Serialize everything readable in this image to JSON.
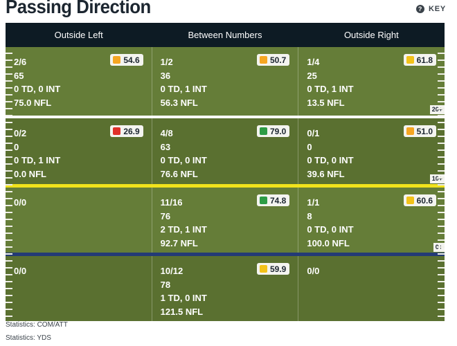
{
  "title": "Passing Direction",
  "key_label": "KEY",
  "columns": [
    "Outside Left",
    "Between Numbers",
    "Outside Right"
  ],
  "rows": [
    {
      "marker": "20+",
      "cells": [
        {
          "lines": [
            "2/6",
            "65",
            "0 TD, 0 INT",
            "75.0 NFL"
          ],
          "grade": "54.6",
          "grade_color": "#f5a623"
        },
        {
          "lines": [
            "1/2",
            "36",
            "0 TD, 1 INT",
            "56.3 NFL"
          ],
          "grade": "50.7",
          "grade_color": "#f5a623"
        },
        {
          "lines": [
            "1/4",
            "25",
            "0 TD, 1 INT",
            "13.5 NFL"
          ],
          "grade": "61.8",
          "grade_color": "#f2c21a"
        }
      ]
    },
    {
      "marker": "10+",
      "cells": [
        {
          "lines": [
            "0/2",
            "0",
            "0 TD, 1 INT",
            "0.0 NFL"
          ],
          "grade": "26.9",
          "grade_color": "#e0302a"
        },
        {
          "lines": [
            "4/8",
            "63",
            "0 TD, 0 INT",
            "76.6 NFL"
          ],
          "grade": "79.0",
          "grade_color": "#2e9c46"
        },
        {
          "lines": [
            "0/1",
            "0",
            "0 TD, 0 INT",
            "39.6 NFL"
          ],
          "grade": "51.0",
          "grade_color": "#f5a623"
        }
      ]
    },
    {
      "marker": "0+",
      "cells": [
        {
          "lines": [
            "0/0"
          ]
        },
        {
          "lines": [
            "11/16",
            "76",
            "2 TD, 1 INT",
            "92.7 NFL"
          ],
          "grade": "74.8",
          "grade_color": "#2e9c46"
        },
        {
          "lines": [
            "1/1",
            "8",
            "0 TD, 0 INT",
            "100.0 NFL"
          ],
          "grade": "60.6",
          "grade_color": "#f2c21a"
        }
      ]
    },
    {
      "marker": "",
      "cells": [
        {
          "lines": [
            "0/0"
          ]
        },
        {
          "lines": [
            "10/12",
            "78",
            "1 TD, 0 INT",
            "121.5 NFL"
          ],
          "grade": "59.9",
          "grade_color": "#f2c21a"
        },
        {
          "lines": [
            "0/0"
          ]
        }
      ]
    }
  ],
  "footer": [
    "Statistics: COM/ATT",
    "Statistics: YDS"
  ]
}
